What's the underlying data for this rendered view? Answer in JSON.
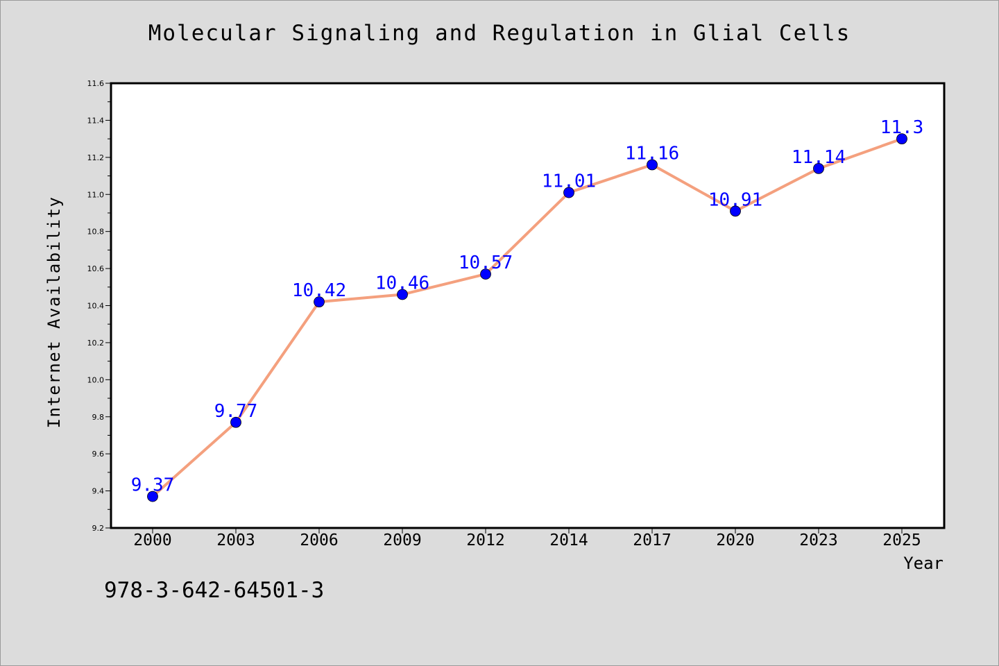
{
  "chart_data": {
    "type": "line",
    "title": "Molecular Signaling and Regulation in Glial Cells",
    "xlabel": "Year",
    "ylabel": "Internet Availability",
    "categories": [
      "2000",
      "2003",
      "2006",
      "2009",
      "2012",
      "2014",
      "2017",
      "2020",
      "2023",
      "2025"
    ],
    "series": [
      {
        "values": [
          9.37,
          9.77,
          10.42,
          10.46,
          10.57,
          11.01,
          11.16,
          10.91,
          11.14,
          11.3
        ],
        "labels": [
          "9.37",
          "9.77",
          "10.42",
          "10.46",
          "10.57",
          "11.01",
          "11.16",
          "10.91",
          "11.14",
          "11.3"
        ],
        "line_color": "#f4a07e",
        "marker_color": "#0000ff",
        "label_color": "#0000ff"
      }
    ],
    "ylim": [
      9.2,
      11.6
    ],
    "yticks": [
      "9.2",
      "9.4",
      "9.6",
      "9.8",
      "10.0",
      "10.2",
      "10.4",
      "10.6",
      "10.8",
      "11.0",
      "11.2",
      "11.4",
      "11.6"
    ],
    "grid": false,
    "legend": "none"
  },
  "footer": {
    "isbn": "978-3-642-64501-3"
  }
}
